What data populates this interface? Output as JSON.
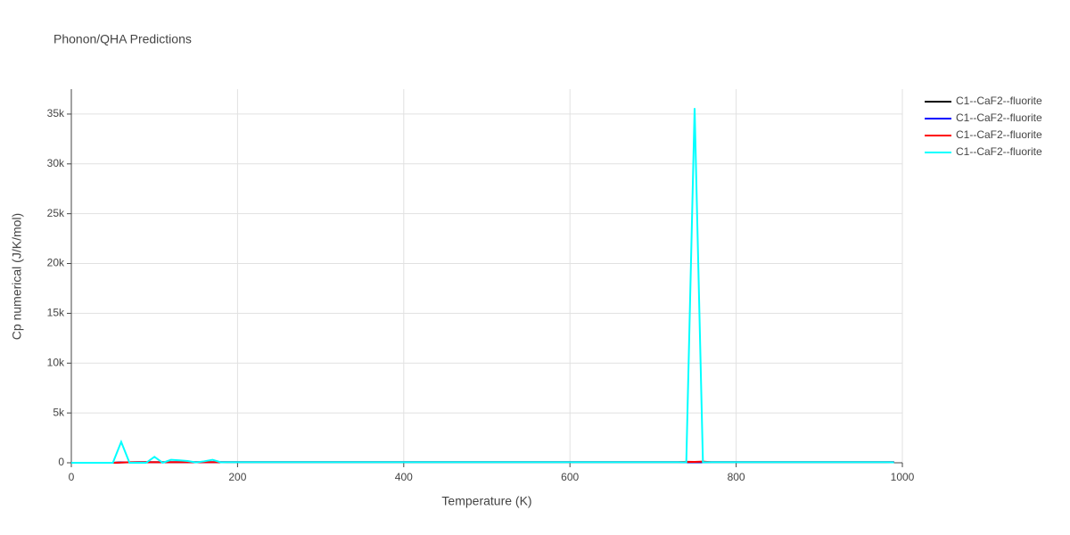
{
  "chart_data": {
    "type": "line",
    "title": "Phonon/QHA Predictions",
    "xlabel": "Temperature (K)",
    "ylabel": "Cp numerical (J/K/mol)",
    "x": [
      0,
      10,
      20,
      30,
      40,
      50,
      60,
      70,
      80,
      90,
      100,
      110,
      120,
      130,
      140,
      150,
      160,
      170,
      180,
      190,
      200,
      210,
      220,
      230,
      240,
      250,
      260,
      270,
      280,
      290,
      300,
      310,
      320,
      330,
      340,
      350,
      360,
      370,
      380,
      390,
      400,
      410,
      420,
      430,
      440,
      450,
      460,
      470,
      480,
      490,
      500,
      510,
      520,
      530,
      540,
      550,
      560,
      570,
      580,
      590,
      600,
      610,
      620,
      630,
      640,
      650,
      660,
      670,
      680,
      690,
      700,
      710,
      720,
      730,
      740,
      750,
      760,
      770,
      780,
      790,
      800,
      810,
      820,
      830,
      840,
      850,
      860,
      870,
      880,
      890,
      900,
      910,
      920,
      930,
      940,
      950,
      960,
      970,
      980,
      990
    ],
    "series": [
      {
        "name": "C1--CaF2--fluorite",
        "color": "#000000",
        "values": [
          0,
          0,
          0,
          0,
          0,
          0,
          40,
          50,
          60,
          60,
          60,
          60,
          60,
          60,
          60,
          60,
          60,
          60,
          60,
          60,
          60,
          60,
          60,
          60,
          60,
          60,
          60,
          60,
          60,
          60,
          60,
          60,
          60,
          60,
          60,
          60,
          60,
          60,
          60,
          60,
          60,
          60,
          60,
          60,
          60,
          60,
          60,
          60,
          60,
          60,
          60,
          60,
          60,
          60,
          60,
          60,
          60,
          60,
          60,
          60,
          60,
          60,
          60,
          60,
          60,
          60,
          60,
          60,
          60,
          60,
          60,
          60,
          60,
          60,
          60,
          60,
          60,
          60,
          60,
          60,
          60,
          60,
          60,
          60,
          60,
          60,
          60,
          60,
          60,
          60,
          60,
          60,
          60,
          60,
          60,
          60,
          60,
          60,
          60,
          60
        ]
      },
      {
        "name": "C1--CaF2--fluorite",
        "color": "#0000ff",
        "values": [
          0,
          0,
          0,
          0,
          0,
          0,
          30,
          45,
          55,
          58,
          58,
          58,
          58,
          58,
          58,
          58,
          58,
          58,
          58,
          58,
          58,
          58,
          58,
          58,
          58,
          58,
          58,
          58,
          58,
          58,
          58,
          58,
          58,
          58,
          58,
          58,
          58,
          58,
          58,
          58,
          58,
          58,
          58,
          58,
          58,
          58,
          58,
          58,
          58,
          58,
          58,
          58,
          58,
          58,
          58,
          58,
          58,
          58,
          58,
          58,
          58,
          58,
          58,
          58,
          58,
          58,
          58,
          58,
          58,
          58,
          58,
          58,
          58,
          58,
          58,
          58,
          58,
          58,
          58,
          58,
          58,
          58,
          58,
          58,
          58,
          58,
          58,
          58,
          58,
          58,
          58,
          58,
          58,
          58,
          58,
          58,
          58,
          58,
          58,
          58
        ]
      },
      {
        "name": "C1--CaF2--fluorite",
        "color": "#ff0000",
        "values": [
          0,
          0,
          0,
          0,
          0,
          0,
          20,
          60,
          40,
          60,
          60,
          60,
          60,
          60,
          60,
          60,
          60,
          60,
          60,
          60,
          60,
          60,
          60,
          60,
          60,
          60,
          60,
          60,
          60,
          60,
          60,
          60,
          60,
          60,
          60,
          60,
          60,
          60,
          60,
          60,
          60,
          60,
          60,
          60,
          60,
          60,
          60,
          60,
          60,
          60,
          60,
          60,
          60,
          60,
          60,
          60,
          60,
          60,
          60,
          60,
          60,
          60,
          60,
          60,
          60,
          60,
          60,
          60,
          60,
          60,
          60,
          60,
          60,
          60,
          100,
          90,
          120,
          60,
          60,
          60,
          60,
          60,
          60,
          60,
          60,
          60,
          60,
          60,
          60,
          60,
          60,
          60,
          60,
          60,
          60,
          60,
          60,
          60,
          60,
          60
        ]
      },
      {
        "name": "C1--CaF2--fluorite",
        "color": "#00ffff",
        "values": [
          0,
          0,
          0,
          0,
          0,
          0,
          2100,
          0,
          0,
          0,
          600,
          0,
          300,
          250,
          180,
          30,
          150,
          300,
          50,
          60,
          60,
          60,
          60,
          60,
          60,
          60,
          60,
          60,
          60,
          60,
          60,
          60,
          60,
          60,
          60,
          60,
          60,
          60,
          60,
          60,
          60,
          60,
          60,
          60,
          60,
          60,
          60,
          60,
          60,
          60,
          60,
          60,
          60,
          60,
          60,
          60,
          60,
          60,
          60,
          60,
          60,
          60,
          60,
          60,
          60,
          60,
          60,
          60,
          60,
          60,
          60,
          60,
          60,
          60,
          60,
          35600,
          60,
          60,
          60,
          60,
          60,
          60,
          60,
          60,
          60,
          60,
          60,
          60,
          60,
          60,
          60,
          60,
          60,
          60,
          60,
          60,
          60,
          60,
          60,
          50
        ]
      }
    ],
    "xlim": [
      0,
      1000
    ],
    "xticks": [
      0,
      200,
      400,
      600,
      800,
      1000
    ],
    "ylim": [
      0,
      37500
    ],
    "yticks": [
      0,
      {
        "value": 5000,
        "label": "5k"
      },
      {
        "value": 10000,
        "label": "10k"
      },
      {
        "value": 15000,
        "label": "15k"
      },
      {
        "value": 20000,
        "label": "20k"
      },
      {
        "value": 25000,
        "label": "25k"
      },
      {
        "value": 30000,
        "label": "30k"
      },
      {
        "value": 35000,
        "label": "35k"
      }
    ],
    "grid": true,
    "legend": "right"
  }
}
